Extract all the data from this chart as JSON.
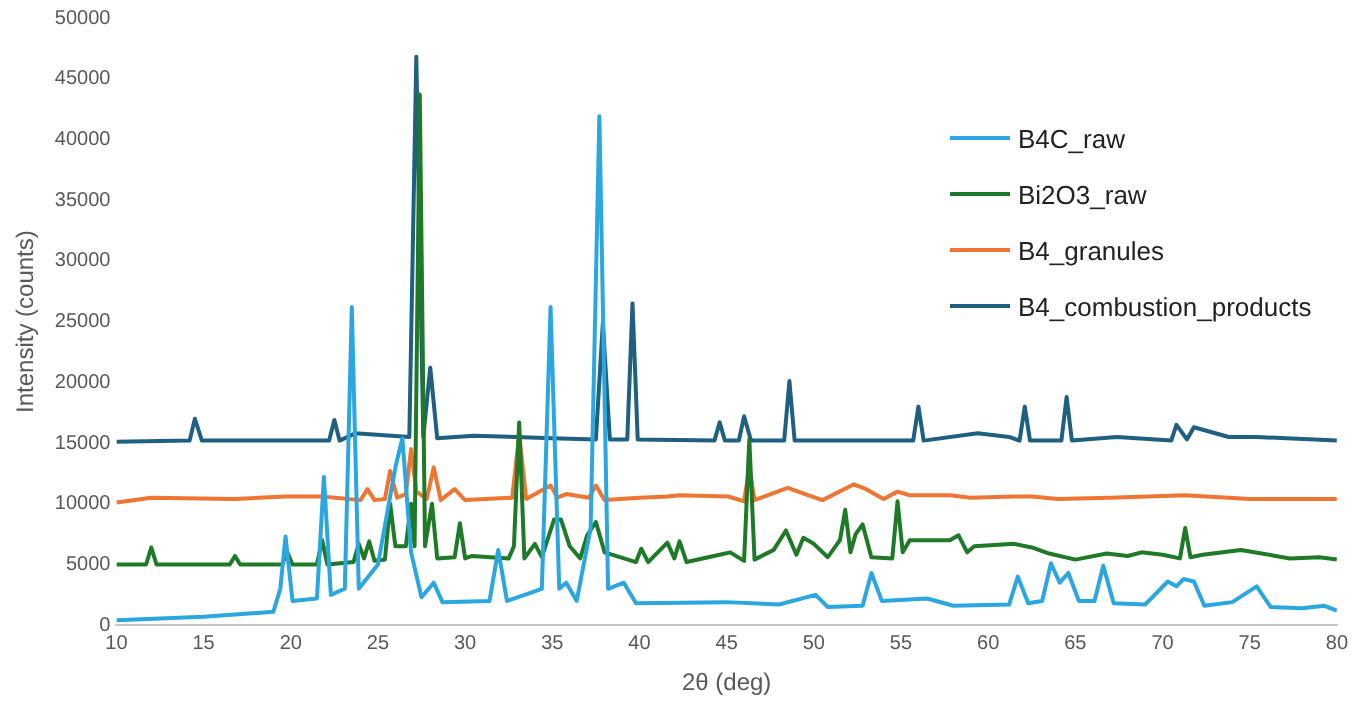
{
  "chart_data": {
    "type": "line",
    "xlabel": "2θ (deg)",
    "ylabel": "Intensity (counts)",
    "xlim": [
      10,
      80
    ],
    "xticks": [
      10,
      15,
      20,
      25,
      30,
      35,
      40,
      45,
      50,
      55,
      60,
      65,
      70,
      75,
      80
    ],
    "ylim": [
      0,
      50000
    ],
    "yticks": [
      0,
      5000,
      10000,
      15000,
      20000,
      25000,
      30000,
      35000,
      40000,
      45000,
      50000
    ],
    "grid": false,
    "legend": "top right",
    "marker": "none",
    "line_style": "solid",
    "series": [
      {
        "name": "B4C_raw",
        "color": "#2aa6e0",
        "x": [
          10,
          15,
          19,
          19.4,
          19.7,
          20.1,
          21.5,
          21.9,
          22.3,
          23.1,
          23.5,
          23.9,
          25,
          26,
          26.4,
          26.9,
          27.5,
          28.2,
          28.7,
          31.4,
          31.9,
          32.4,
          34.4,
          34.9,
          35.4,
          35.8,
          36.4,
          37.2,
          37.7,
          38.2,
          39.1,
          39.8,
          45,
          48,
          50.1,
          50.8,
          52.8,
          53.3,
          53.9,
          56.5,
          58,
          61.2,
          61.7,
          62.3,
          63.1,
          63.6,
          64.1,
          64.6,
          65.2,
          66.1,
          66.6,
          67.2,
          69,
          70.3,
          70.8,
          71.2,
          71.8,
          72.4,
          74,
          75.4,
          76.2,
          78,
          79.3,
          80
        ],
        "values": [
          400,
          700,
          1100,
          3000,
          7300,
          2000,
          2200,
          12200,
          2500,
          3000,
          26200,
          3000,
          5000,
          13000,
          15400,
          6000,
          2300,
          3500,
          1900,
          2000,
          6200,
          2000,
          3000,
          26200,
          3000,
          3500,
          2000,
          8000,
          41900,
          3000,
          3500,
          1800,
          1900,
          1700,
          2500,
          1500,
          1600,
          4300,
          2000,
          2200,
          1600,
          1700,
          4000,
          1800,
          2000,
          5100,
          3500,
          4300,
          2000,
          2000,
          4900,
          1800,
          1700,
          3600,
          3200,
          3800,
          3600,
          1600,
          1900,
          3200,
          1500,
          1400,
          1600,
          1200
        ]
      },
      {
        "name": "Bi2O3_raw",
        "color": "#1e7a26",
        "x": [
          10,
          11.7,
          12,
          12.3,
          16.5,
          16.8,
          17.1,
          19.5,
          19.8,
          20.1,
          21.5,
          21.8,
          22.1,
          23.6,
          23.9,
          24.2,
          24.5,
          24.8,
          25.4,
          25.7,
          26,
          26.6,
          26.9,
          27.1,
          27.4,
          27.7,
          28.1,
          28.4,
          29.4,
          29.7,
          30,
          30.4,
          32.5,
          32.8,
          33.1,
          33.4,
          34,
          34.4,
          35.1,
          35.5,
          36,
          36.6,
          37,
          37.5,
          38,
          39.8,
          40.1,
          40.5,
          41.6,
          42,
          42.3,
          42.7,
          44.6,
          45.2,
          46,
          46.3,
          46.6,
          47.7,
          48.4,
          49,
          49.4,
          50,
          50.8,
          51.5,
          51.8,
          52.1,
          52.4,
          52.8,
          53.3,
          54.5,
          54.8,
          55.1,
          55.5,
          56,
          57.8,
          58.3,
          58.8,
          59.2,
          61.5,
          62.5,
          63.5,
          65,
          66.8,
          68,
          68.8,
          70,
          71,
          71.3,
          71.6,
          72.3,
          74.5,
          77.3,
          79,
          80
        ],
        "values": [
          5000,
          5000,
          6400,
          5000,
          5000,
          5700,
          5000,
          5000,
          6000,
          5000,
          5000,
          7000,
          5000,
          5200,
          6700,
          5500,
          6900,
          5300,
          5400,
          10000,
          6500,
          6500,
          10000,
          6500,
          43700,
          6500,
          10000,
          5500,
          5600,
          8400,
          5500,
          5700,
          5500,
          6500,
          16700,
          5500,
          6700,
          5600,
          8700,
          8700,
          6500,
          5500,
          7400,
          8500,
          6000,
          5200,
          6300,
          5200,
          6800,
          5500,
          6900,
          5200,
          5800,
          6000,
          5300,
          15300,
          5400,
          6200,
          7800,
          5800,
          7200,
          6700,
          5600,
          7000,
          9500,
          6000,
          7500,
          8300,
          5600,
          5500,
          10200,
          6000,
          7000,
          7000,
          7000,
          7400,
          6000,
          6500,
          6700,
          6400,
          5900,
          5400,
          5900,
          5700,
          6000,
          5800,
          5500,
          8000,
          5600,
          5800,
          6200,
          5500,
          5600,
          5400
        ]
      },
      {
        "name": "B4_granules",
        "color": "#ef7534",
        "x": [
          10,
          12,
          16.8,
          19.7,
          21.8,
          24,
          24.4,
          24.8,
          25.4,
          25.7,
          26.1,
          26.6,
          26.9,
          27.2,
          27.8,
          28.2,
          28.6,
          29.4,
          30,
          32.7,
          33.1,
          33.5,
          34.9,
          35.3,
          35.8,
          37.1,
          37.5,
          38,
          40,
          41.6,
          42.3,
          45.1,
          46,
          46.3,
          46.6,
          48.5,
          49.5,
          50.5,
          52.3,
          53,
          54,
          54.8,
          55.5,
          57.8,
          59,
          61.5,
          62.5,
          64,
          67,
          71.3,
          75,
          80
        ],
        "values": [
          10100,
          10500,
          10400,
          10600,
          10600,
          10300,
          11200,
          10300,
          10400,
          12700,
          10500,
          10800,
          14500,
          11000,
          10400,
          13000,
          10300,
          11200,
          10300,
          10500,
          15700,
          10400,
          11500,
          10500,
          10800,
          10500,
          11500,
          10300,
          10500,
          10600,
          10700,
          10600,
          10200,
          13000,
          10300,
          11300,
          10800,
          10300,
          11600,
          11200,
          10400,
          11000,
          10700,
          10700,
          10500,
          10600,
          10600,
          10400,
          10500,
          10700,
          10400,
          10400
        ]
      },
      {
        "name": "B4_combustion_products",
        "color": "#1f5f80",
        "x": [
          10,
          14.2,
          14.5,
          14.9,
          22.2,
          22.5,
          22.8,
          23.7,
          26.8,
          27.2,
          27.6,
          28,
          28.4,
          30.5,
          35,
          37.5,
          37.9,
          38.3,
          39.3,
          39.6,
          39.9,
          44.3,
          44.6,
          44.9,
          45.7,
          46,
          46.4,
          48.3,
          48.6,
          48.9,
          55.7,
          56,
          56.3,
          59.4,
          61.2,
          61.8,
          62.1,
          62.4,
          64.2,
          64.5,
          64.8,
          67.4,
          70.5,
          70.8,
          71.4,
          71.8,
          73.8,
          75.4,
          80
        ],
        "values": [
          15100,
          15200,
          17000,
          15200,
          15200,
          16900,
          15200,
          15800,
          15500,
          46800,
          15500,
          21200,
          15400,
          15600,
          15400,
          15300,
          24900,
          15300,
          15300,
          26500,
          15300,
          15200,
          16700,
          15200,
          15200,
          17200,
          15200,
          15200,
          20100,
          15200,
          15200,
          18000,
          15200,
          15800,
          15500,
          15200,
          18000,
          15200,
          15200,
          18800,
          15200,
          15500,
          15200,
          16500,
          15300,
          16300,
          15500,
          15500,
          15200
        ]
      }
    ]
  }
}
